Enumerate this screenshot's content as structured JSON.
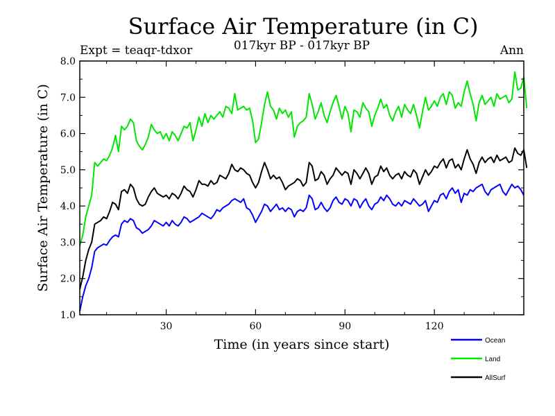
{
  "chart_data": {
    "type": "line",
    "title": "Surface Air Temperature (in C)",
    "subtitle": "017kyr BP - 017kyr BP",
    "experiment": "Expt = teaqr-tdxor",
    "season": "Ann",
    "xlabel": "Time (in years since start)",
    "ylabel": "Surface Air Temperature (in C)",
    "xlim": [
      1,
      150
    ],
    "ylim": [
      1.0,
      8.0
    ],
    "xticks": [
      30,
      60,
      90,
      120
    ],
    "yticks": [
      1.0,
      2.0,
      3.0,
      4.0,
      5.0,
      6.0,
      7.0,
      8.0
    ],
    "yticklabels": [
      "1.0",
      "2.0",
      "3.0",
      "4.0",
      "5.0",
      "6.0",
      "7.0",
      "8.0"
    ],
    "legend_position": "bottom-right",
    "series": [
      {
        "name": "Ocean",
        "color": "#0000ff",
        "values": [
          1.1,
          1.5,
          1.8,
          2.0,
          2.3,
          2.75,
          2.85,
          2.9,
          2.95,
          2.92,
          3.05,
          3.15,
          3.2,
          3.15,
          3.5,
          3.6,
          3.55,
          3.65,
          3.6,
          3.4,
          3.35,
          3.25,
          3.3,
          3.35,
          3.45,
          3.6,
          3.55,
          3.5,
          3.45,
          3.55,
          3.45,
          3.6,
          3.5,
          3.45,
          3.55,
          3.7,
          3.65,
          3.55,
          3.6,
          3.65,
          3.7,
          3.8,
          3.75,
          3.7,
          3.65,
          3.75,
          3.9,
          3.85,
          3.95,
          4.0,
          4.05,
          4.15,
          4.2,
          4.15,
          4.1,
          4.2,
          3.95,
          3.9,
          3.75,
          3.55,
          3.7,
          3.85,
          4.05,
          4.0,
          3.85,
          3.95,
          4.05,
          3.9,
          3.95,
          3.85,
          3.95,
          3.9,
          3.7,
          3.85,
          3.9,
          3.85,
          3.95,
          4.3,
          4.2,
          3.9,
          3.95,
          4.1,
          3.95,
          3.85,
          3.95,
          4.15,
          4.25,
          4.1,
          4.05,
          4.2,
          4.15,
          4.0,
          4.2,
          4.15,
          3.95,
          4.1,
          4.2,
          4.0,
          3.9,
          4.05,
          4.1,
          4.25,
          4.15,
          4.3,
          4.2,
          4.05,
          4.0,
          4.1,
          4.0,
          4.15,
          4.1,
          4.05,
          4.2,
          4.1,
          4.0,
          4.05,
          4.15,
          3.85,
          4.0,
          4.15,
          4.1,
          4.3,
          4.35,
          4.2,
          4.4,
          4.5,
          4.35,
          4.45,
          4.1,
          4.35,
          4.3,
          4.45,
          4.4,
          4.5,
          4.55,
          4.6,
          4.4,
          4.3,
          4.45,
          4.5,
          4.55,
          4.6,
          4.4,
          4.3,
          4.45,
          4.6,
          4.5,
          4.55,
          4.45,
          4.3
        ]
      },
      {
        "name": "Land",
        "color": "#00e600",
        "values": [
          2.9,
          3.2,
          3.7,
          4.0,
          4.3,
          5.2,
          5.1,
          5.2,
          5.3,
          5.25,
          5.4,
          5.6,
          5.95,
          5.5,
          6.2,
          6.1,
          6.2,
          6.4,
          6.3,
          5.8,
          5.65,
          5.55,
          5.7,
          5.9,
          6.25,
          6.1,
          6.0,
          6.05,
          5.85,
          6.0,
          5.8,
          6.05,
          5.95,
          5.8,
          6.0,
          6.2,
          6.15,
          6.3,
          5.8,
          6.1,
          6.45,
          6.2,
          6.55,
          6.3,
          6.5,
          6.4,
          6.5,
          6.6,
          6.45,
          6.75,
          6.7,
          6.55,
          7.1,
          6.65,
          6.7,
          6.75,
          6.65,
          6.7,
          6.35,
          5.75,
          5.85,
          6.3,
          6.8,
          7.15,
          6.75,
          6.65,
          6.4,
          6.7,
          6.55,
          6.65,
          6.45,
          6.6,
          5.9,
          6.2,
          6.3,
          6.35,
          6.45,
          7.1,
          6.8,
          6.4,
          6.6,
          6.85,
          6.5,
          6.3,
          6.6,
          6.85,
          7.05,
          6.75,
          6.4,
          6.75,
          6.55,
          6.05,
          6.65,
          6.6,
          6.45,
          6.85,
          6.7,
          6.6,
          6.2,
          6.5,
          6.7,
          6.95,
          6.7,
          6.8,
          6.5,
          6.35,
          6.6,
          6.75,
          6.45,
          6.8,
          6.65,
          6.55,
          6.8,
          6.5,
          6.15,
          6.6,
          7.0,
          6.65,
          6.75,
          6.9,
          6.75,
          7.0,
          7.1,
          6.8,
          7.15,
          7.05,
          6.7,
          6.85,
          6.75,
          7.15,
          7.45,
          7.1,
          6.8,
          6.35,
          6.85,
          7.05,
          6.8,
          6.9,
          7.0,
          6.75,
          7.1,
          6.95,
          7.0,
          7.05,
          6.85,
          6.95,
          7.7,
          7.2,
          7.25,
          7.55,
          6.7
        ]
      },
      {
        "name": "AllSurf",
        "color": "#000000",
        "values": [
          1.7,
          2.05,
          2.5,
          2.8,
          3.0,
          3.5,
          3.55,
          3.6,
          3.7,
          3.65,
          3.85,
          4.1,
          4.05,
          3.9,
          4.4,
          4.45,
          4.35,
          4.6,
          4.5,
          4.2,
          4.05,
          4.0,
          4.05,
          4.25,
          4.4,
          4.5,
          4.35,
          4.3,
          4.25,
          4.3,
          4.2,
          4.35,
          4.3,
          4.2,
          4.35,
          4.55,
          4.45,
          4.4,
          4.25,
          4.45,
          4.7,
          4.6,
          4.6,
          4.55,
          4.7,
          4.6,
          4.65,
          4.85,
          4.8,
          4.75,
          4.9,
          5.15,
          5.0,
          4.95,
          5.05,
          5.0,
          4.9,
          4.85,
          4.65,
          4.5,
          4.65,
          4.95,
          5.2,
          5.0,
          4.75,
          4.85,
          4.75,
          4.8,
          4.65,
          4.45,
          4.55,
          4.6,
          4.65,
          4.75,
          4.7,
          4.55,
          4.65,
          5.2,
          5.1,
          4.7,
          4.75,
          4.95,
          4.85,
          4.6,
          4.75,
          4.85,
          5.05,
          4.95,
          4.85,
          4.95,
          4.9,
          4.6,
          5.0,
          4.9,
          4.75,
          4.9,
          5.05,
          4.9,
          4.6,
          4.8,
          4.85,
          5.1,
          4.95,
          5.05,
          4.85,
          4.75,
          4.85,
          4.9,
          4.75,
          4.95,
          4.85,
          4.8,
          5.0,
          4.9,
          4.6,
          4.8,
          5.0,
          4.85,
          4.95,
          5.1,
          5.05,
          5.2,
          5.3,
          5.05,
          5.25,
          5.3,
          5.05,
          5.15,
          5.0,
          5.3,
          5.55,
          5.3,
          5.15,
          4.9,
          5.2,
          5.35,
          5.2,
          5.3,
          5.35,
          5.2,
          5.4,
          5.25,
          5.3,
          5.35,
          5.2,
          5.25,
          5.6,
          5.45,
          5.4,
          5.55,
          5.05
        ]
      }
    ]
  }
}
